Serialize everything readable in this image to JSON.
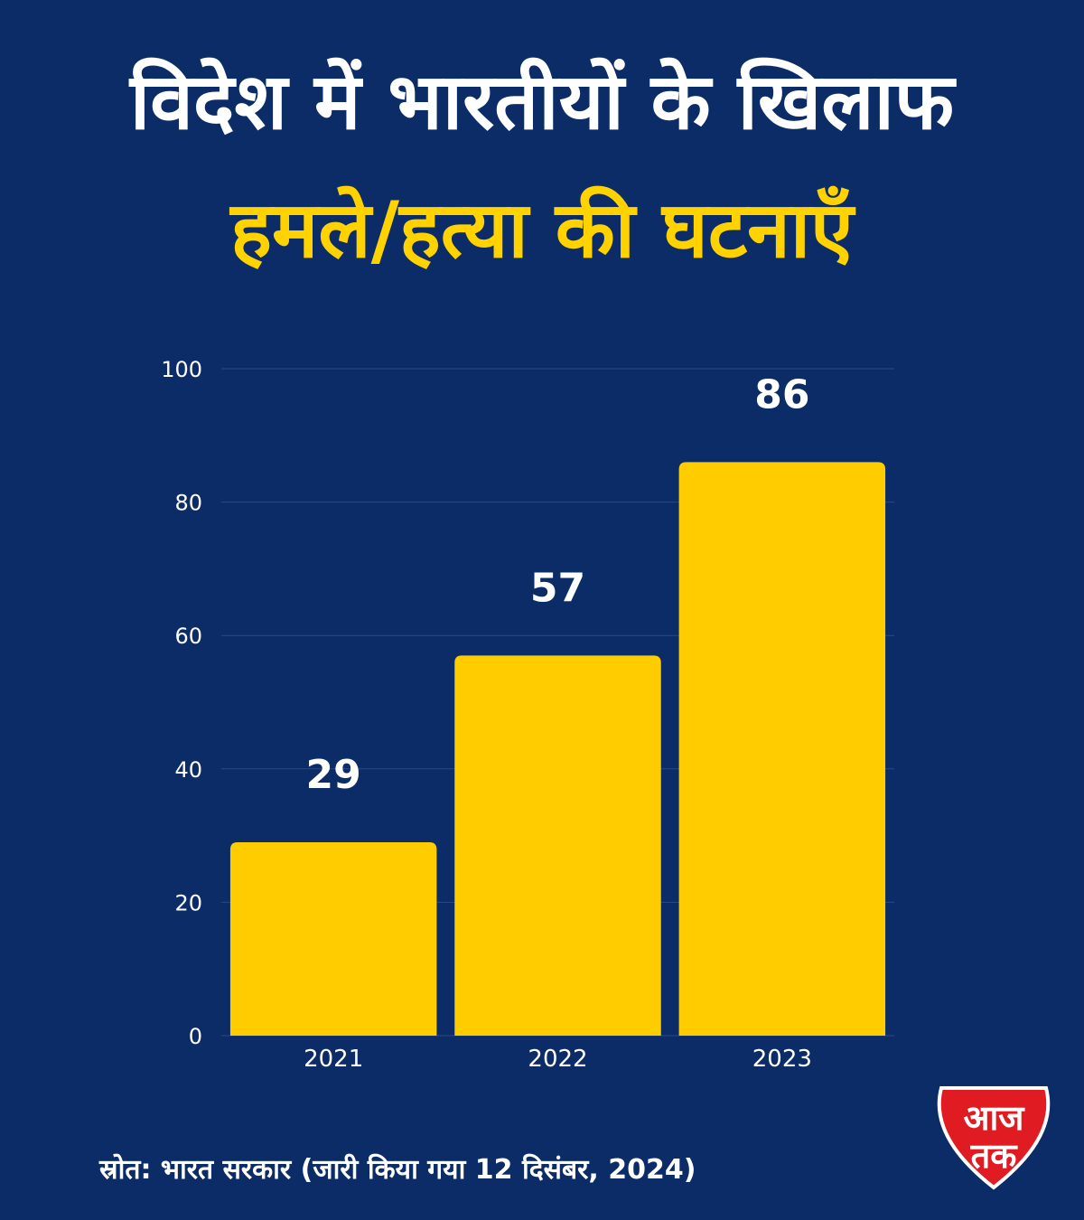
{
  "header": {
    "title_line_1": "विदेश में भारतीयों के खिलाफ",
    "title_line_2": "हमले/हत्या की घटनाएँ"
  },
  "chart_data": {
    "type": "bar",
    "categories": [
      "2021",
      "2022",
      "2023"
    ],
    "values": [
      29,
      57,
      86
    ],
    "title": "विदेश में भारतीयों के खिलाफ हमले/हत्या की घटनाएँ",
    "xlabel": "",
    "ylabel": "",
    "ylim": [
      0,
      100
    ],
    "yticks": [
      0,
      20,
      40,
      60,
      80,
      100
    ],
    "grid": true,
    "legend": "none",
    "data_labels": [
      "29",
      "57",
      "86"
    ]
  },
  "footer": {
    "source": "स्रोत: भारत सरकार (जारी किया गया 12 दिसंबर, 2024)"
  },
  "logo": {
    "line_1": "आज",
    "line_2": "तक"
  },
  "colors": {
    "background": "#0b2c67",
    "bar": "#ffcc00",
    "title_highlight": "#ffd200",
    "logo_red": "#e01b22",
    "text": "#ffffff"
  }
}
